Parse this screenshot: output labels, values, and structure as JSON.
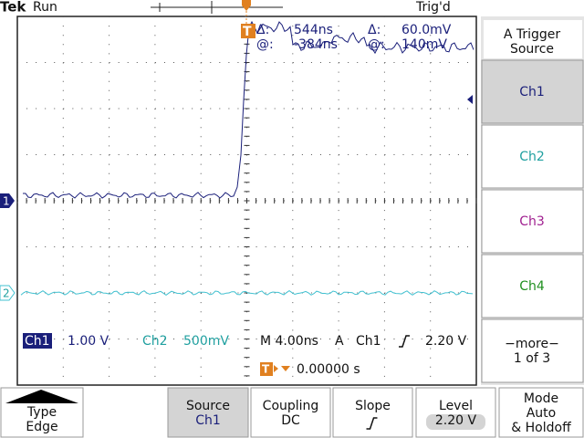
{
  "header": {
    "brand": "Tek",
    "status": "Run",
    "trigger_state": "Trig'd"
  },
  "readout": {
    "time_delta_label": "Δ:",
    "time_delta": "544ns",
    "time_at_label": "@:",
    "time_at": "-384ns",
    "volt_delta_label": "Δ:",
    "volt_delta": "60.0mV",
    "volt_at_label": "@:",
    "volt_at": "140mV"
  },
  "channel_markers": [
    "1",
    "2"
  ],
  "status_bar": {
    "ch1_label": "Ch1",
    "ch1_scale": "1.00 V",
    "ch2_label": "Ch2",
    "ch2_scale": "500mV",
    "timebase": "M 4.00ns",
    "trigger_mode": "A",
    "trigger_source": "Ch1",
    "trigger_level": "2.20 V",
    "trigger_position": "0.00000 s"
  },
  "side_menu": {
    "title": [
      "A Trigger",
      "Source"
    ],
    "buttons": [
      [
        "Ch1"
      ],
      [
        "Ch2"
      ],
      [
        "Ch3"
      ],
      [
        "Ch4"
      ],
      [
        "−more−",
        "1 of 3"
      ]
    ]
  },
  "bottom_menu": [
    [
      "Type",
      "Edge"
    ],
    [
      "Source",
      "Ch1"
    ],
    [
      "Coupling",
      "DC"
    ],
    [
      "Slope"
    ],
    [
      "Level",
      "2.20 V"
    ],
    [
      "Mode",
      "Auto",
      "& Holdoff"
    ]
  ]
}
